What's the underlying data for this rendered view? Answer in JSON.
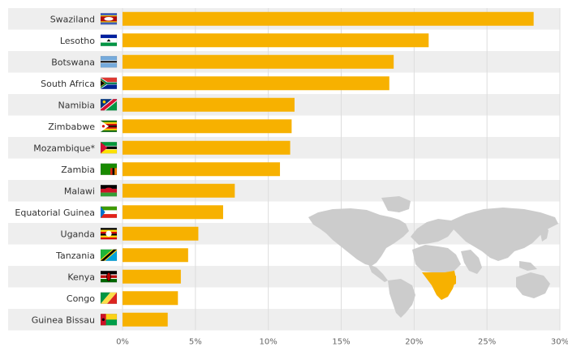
{
  "chart_data": {
    "type": "bar",
    "orientation": "horizontal",
    "title": "",
    "xlabel": "",
    "ylabel": "",
    "xlim": [
      0,
      30
    ],
    "xticks": [
      "0%",
      "5%",
      "10%",
      "15%",
      "20%",
      "25%",
      "30%"
    ],
    "tick_values": [
      0,
      5,
      10,
      15,
      20,
      25,
      30
    ],
    "grid": true,
    "legend": "none",
    "categories": [
      "Swaziland",
      "Lesotho",
      "Botswana",
      "South Africa",
      "Namibia",
      "Zimbabwe",
      "Mozambique*",
      "Zambia",
      "Malawi",
      "Equatorial Guinea",
      "Uganda",
      "Tanzania",
      "Kenya",
      "Congo",
      "Guinea Bissau"
    ],
    "values": [
      28.2,
      21.0,
      18.6,
      18.3,
      11.8,
      11.6,
      11.5,
      10.8,
      7.7,
      6.9,
      5.2,
      4.5,
      4.0,
      3.8,
      3.1
    ],
    "bar_color": "#f7b100",
    "row_stripe_color": "#eeeeee",
    "flags": [
      "swaziland-flag-icon",
      "lesotho-flag-icon",
      "botswana-flag-icon",
      "south-africa-flag-icon",
      "namibia-flag-icon",
      "zimbabwe-flag-icon",
      "mozambique-flag-icon",
      "zambia-flag-icon",
      "malawi-flag-icon",
      "equatorial-guinea-flag-icon",
      "uganda-flag-icon",
      "tanzania-flag-icon",
      "kenya-flag-icon",
      "congo-flag-icon",
      "guinea-bissau-flag-icon"
    ],
    "map": {
      "land_color": "#cccccc",
      "highlight_color": "#f7b100"
    }
  }
}
